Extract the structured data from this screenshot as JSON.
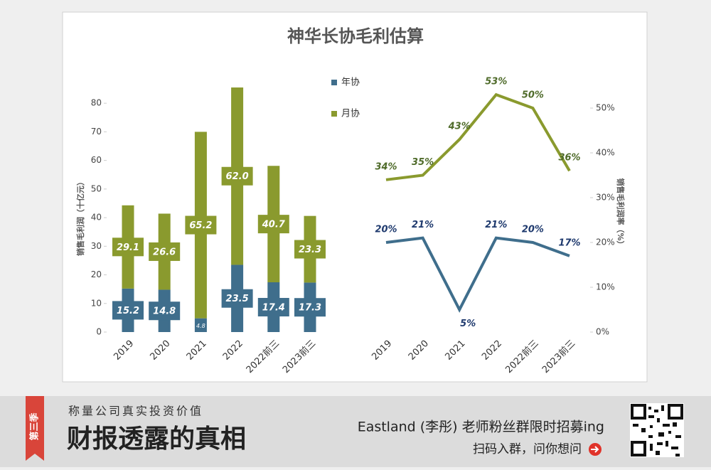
{
  "title": "神华长协毛利估算",
  "chart_data": [
    {
      "type": "bar",
      "stacked": true,
      "ylabel": "销售毛利润（十亿元）",
      "categories": [
        "2019",
        "2020",
        "2021",
        "2022",
        "2022前三",
        "2023前三"
      ],
      "series": [
        {
          "name": "年协",
          "color": "#3f6e8c",
          "values": [
            15.2,
            14.8,
            4.8,
            23.5,
            17.4,
            17.3
          ]
        },
        {
          "name": "月协",
          "color": "#8a9a2e",
          "values": [
            29.1,
            26.6,
            65.2,
            62.0,
            40.7,
            23.3
          ],
          "value_labels": [
            "29.1",
            "26.6",
            "65.2",
            "62.0",
            "40.7",
            "23.3"
          ]
        }
      ],
      "ylim": [
        0,
        87
      ],
      "yticks": [
        0,
        10,
        20,
        30,
        40,
        50,
        60,
        70,
        80
      ]
    },
    {
      "type": "line",
      "ylabel": "销售毛利润率（%）",
      "categories": [
        "2019",
        "2020",
        "2021",
        "2022",
        "2022前三",
        "2023前三"
      ],
      "series": [
        {
          "name": "年协",
          "color": "#3f6e8c",
          "axis": "y2",
          "values": [
            20,
            21,
            5,
            21,
            20,
            17
          ],
          "value_labels": [
            "20%",
            "21%",
            "5%",
            "21%",
            "20%",
            "17%"
          ]
        },
        {
          "name": "月协",
          "color": "#8a9a2e",
          "axis": "y2",
          "values": [
            34,
            35,
            43,
            53,
            50,
            36
          ],
          "value_labels": [
            "34%",
            "35%",
            "43%",
            "53%",
            "50%",
            "36%"
          ]
        }
      ],
      "y2lim": [
        0,
        58
      ],
      "y2ticks": [
        {
          "value": 0,
          "label": "0%"
        },
        {
          "value": 10,
          "label": "10%"
        },
        {
          "value": 20,
          "label": "20%"
        },
        {
          "value": 30,
          "label": "30%"
        },
        {
          "value": 40,
          "label": "40%"
        },
        {
          "value": 50,
          "label": "50%"
        }
      ]
    }
  ],
  "footer": {
    "season": "第三季",
    "tagline": "称量公司真实投资价值",
    "brand": "财报透露的真相",
    "recruit": "Eastland (李彤) 老师粉丝群限时招募ing",
    "cta": "扫码入群，问你想问"
  }
}
